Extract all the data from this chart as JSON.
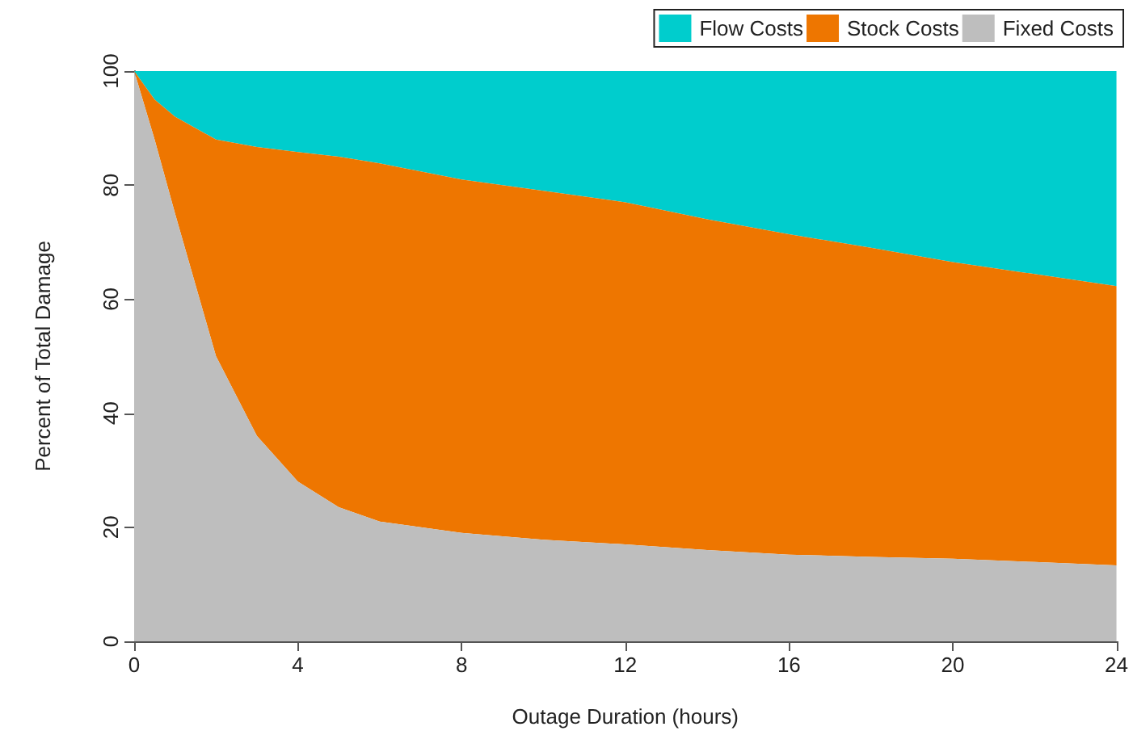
{
  "chart_data": {
    "type": "area",
    "stacked": true,
    "xlabel": "Outage Duration (hours)",
    "ylabel": "Percent of Total Damage",
    "x": [
      0,
      0.5,
      1,
      2,
      3,
      4,
      5,
      6,
      7,
      8,
      10,
      12,
      14,
      16,
      18,
      20,
      22,
      24
    ],
    "series": [
      {
        "name": "Fixed Costs",
        "color": "#bebebe",
        "values": [
          100,
          88,
          75,
          50,
          36,
          28,
          23.5,
          21,
          20,
          19,
          17.8,
          17,
          16,
          15.2,
          14.8,
          14.5,
          13.9,
          13.3
        ]
      },
      {
        "name": "Stock Costs",
        "color": "#ee7600",
        "values": [
          0,
          7,
          17,
          38,
          50.7,
          57.8,
          61.5,
          62.8,
          62.4,
          62,
          61.2,
          60,
          58,
          56.2,
          54.2,
          52,
          50.5,
          49
        ]
      },
      {
        "name": "Flow Costs",
        "color": "#00cdcd",
        "values": [
          0,
          5,
          8,
          12,
          13.3,
          14.2,
          15,
          16.2,
          17.6,
          19,
          21,
          23,
          26,
          28.6,
          31,
          33.5,
          35.6,
          37.7
        ]
      }
    ],
    "xlim": [
      0,
      24
    ],
    "xticks": [
      0,
      4,
      8,
      12,
      16,
      20,
      24
    ],
    "ylim": [
      0,
      100
    ],
    "yticks": [
      0,
      20,
      40,
      60,
      80,
      100
    ],
    "grid": false,
    "legend": "top right"
  }
}
